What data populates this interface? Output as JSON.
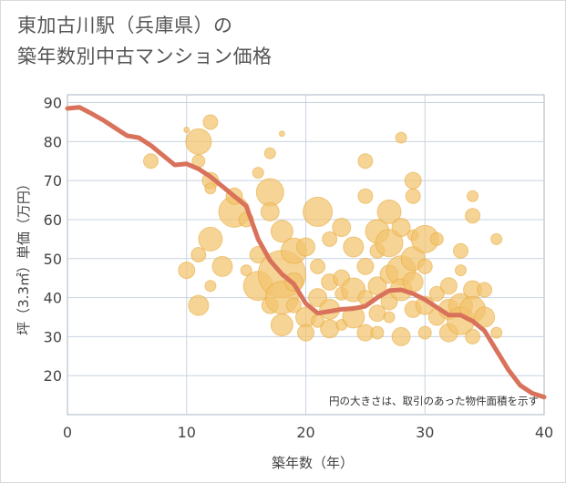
{
  "chart_data": {
    "type": "scatter",
    "title_line1": "東加古川駅（兵庫県）の",
    "title_line2": "築年数別中古マンション価格",
    "xlabel": "築年数（年）",
    "ylabel": "坪（3.3㎡）単価（万円）",
    "note": "円の大きさは、取引のあった物件面積を示す",
    "xlim": [
      0,
      40
    ],
    "ylim": [
      10,
      92
    ],
    "x_ticks": [
      0,
      10,
      20,
      30,
      40
    ],
    "y_ticks": [
      20,
      30,
      40,
      50,
      60,
      70,
      80,
      90
    ],
    "colors": {
      "bubble_fill": "#f3c46d",
      "bubble_stroke": "#e6a735",
      "trend_line": "#d9725a",
      "grid": "#c9d3e0",
      "plot_border": "#a9b5c4"
    },
    "trend_line": {
      "x": [
        0,
        1,
        2,
        3,
        4,
        5,
        6,
        7,
        8,
        9,
        10,
        11,
        12,
        13,
        14,
        15,
        16,
        17,
        18,
        19,
        20,
        21,
        22,
        23,
        24,
        25,
        26,
        27,
        28,
        29,
        30,
        31,
        32,
        33,
        34,
        35,
        36,
        37,
        38,
        39,
        40
      ],
      "y": [
        88.5,
        88.8,
        87.2,
        85.5,
        83.5,
        81.5,
        81,
        79,
        76.5,
        74,
        74.3,
        73,
        71,
        68.5,
        66,
        63.5,
        55,
        49.5,
        46,
        43.5,
        38.5,
        36,
        36.5,
        37,
        37.2,
        37.8,
        40,
        41.8,
        42,
        41,
        39.5,
        37.5,
        35.5,
        35.5,
        34,
        31.5,
        26.5,
        21.5,
        17.5,
        15.5,
        14.5
      ]
    },
    "bubbles": [
      {
        "x": 10,
        "y": 83,
        "r": 3
      },
      {
        "x": 11,
        "y": 80,
        "r": 14
      },
      {
        "x": 11,
        "y": 75,
        "r": 7
      },
      {
        "x": 12,
        "y": 85,
        "r": 8
      },
      {
        "x": 12,
        "y": 70,
        "r": 9
      },
      {
        "x": 12,
        "y": 68,
        "r": 6
      },
      {
        "x": 7,
        "y": 75,
        "r": 8
      },
      {
        "x": 10,
        "y": 47,
        "r": 9
      },
      {
        "x": 11,
        "y": 51,
        "r": 8
      },
      {
        "x": 11,
        "y": 38,
        "r": 11
      },
      {
        "x": 12,
        "y": 55,
        "r": 13
      },
      {
        "x": 12,
        "y": 43,
        "r": 6
      },
      {
        "x": 13,
        "y": 48,
        "r": 11
      },
      {
        "x": 14,
        "y": 62,
        "r": 17
      },
      {
        "x": 14,
        "y": 66,
        "r": 9
      },
      {
        "x": 15,
        "y": 60,
        "r": 8
      },
      {
        "x": 15,
        "y": 47,
        "r": 6
      },
      {
        "x": 16,
        "y": 43,
        "r": 16
      },
      {
        "x": 16,
        "y": 51,
        "r": 9
      },
      {
        "x": 16,
        "y": 72,
        "r": 6
      },
      {
        "x": 17,
        "y": 77,
        "r": 6
      },
      {
        "x": 17,
        "y": 67,
        "r": 15
      },
      {
        "x": 17,
        "y": 62,
        "r": 10
      },
      {
        "x": 17,
        "y": 38,
        "r": 9
      },
      {
        "x": 18,
        "y": 82,
        "r": 3
      },
      {
        "x": 18,
        "y": 57,
        "r": 12
      },
      {
        "x": 18,
        "y": 46,
        "r": 26
      },
      {
        "x": 18,
        "y": 40,
        "r": 18
      },
      {
        "x": 18,
        "y": 33,
        "r": 12
      },
      {
        "x": 19,
        "y": 52,
        "r": 14
      },
      {
        "x": 19,
        "y": 44,
        "r": 10
      },
      {
        "x": 19,
        "y": 38,
        "r": 8
      },
      {
        "x": 20,
        "y": 53,
        "r": 10
      },
      {
        "x": 20,
        "y": 35,
        "r": 11
      },
      {
        "x": 20,
        "y": 31,
        "r": 9
      },
      {
        "x": 21,
        "y": 62,
        "r": 16
      },
      {
        "x": 21,
        "y": 48,
        "r": 8
      },
      {
        "x": 21,
        "y": 40,
        "r": 10
      },
      {
        "x": 21,
        "y": 34,
        "r": 7
      },
      {
        "x": 22,
        "y": 55,
        "r": 8
      },
      {
        "x": 22,
        "y": 44,
        "r": 9
      },
      {
        "x": 22,
        "y": 37,
        "r": 11
      },
      {
        "x": 22,
        "y": 32,
        "r": 10
      },
      {
        "x": 23,
        "y": 58,
        "r": 10
      },
      {
        "x": 23,
        "y": 45,
        "r": 9
      },
      {
        "x": 23,
        "y": 41,
        "r": 7
      },
      {
        "x": 23,
        "y": 33,
        "r": 6
      },
      {
        "x": 24,
        "y": 53,
        "r": 11
      },
      {
        "x": 24,
        "y": 42,
        "r": 13
      },
      {
        "x": 24,
        "y": 35,
        "r": 12
      },
      {
        "x": 25,
        "y": 75,
        "r": 8
      },
      {
        "x": 25,
        "y": 66,
        "r": 8
      },
      {
        "x": 25,
        "y": 48,
        "r": 9
      },
      {
        "x": 25,
        "y": 40,
        "r": 8
      },
      {
        "x": 25,
        "y": 31,
        "r": 9
      },
      {
        "x": 26,
        "y": 57,
        "r": 13
      },
      {
        "x": 26,
        "y": 52,
        "r": 8
      },
      {
        "x": 26,
        "y": 43,
        "r": 10
      },
      {
        "x": 26,
        "y": 36,
        "r": 9
      },
      {
        "x": 26,
        "y": 31,
        "r": 7
      },
      {
        "x": 27,
        "y": 62,
        "r": 13
      },
      {
        "x": 27,
        "y": 54,
        "r": 15
      },
      {
        "x": 27,
        "y": 46,
        "r": 10
      },
      {
        "x": 27,
        "y": 39,
        "r": 9
      },
      {
        "x": 27,
        "y": 35,
        "r": 6
      },
      {
        "x": 28,
        "y": 81,
        "r": 6
      },
      {
        "x": 28,
        "y": 58,
        "r": 10
      },
      {
        "x": 28,
        "y": 47,
        "r": 16
      },
      {
        "x": 28,
        "y": 42,
        "r": 12
      },
      {
        "x": 28,
        "y": 30,
        "r": 10
      },
      {
        "x": 29,
        "y": 70,
        "r": 9
      },
      {
        "x": 29,
        "y": 66,
        "r": 8
      },
      {
        "x": 29,
        "y": 56,
        "r": 6
      },
      {
        "x": 29,
        "y": 50,
        "r": 13
      },
      {
        "x": 29,
        "y": 44,
        "r": 11
      },
      {
        "x": 29,
        "y": 37,
        "r": 9
      },
      {
        "x": 30,
        "y": 55,
        "r": 15
      },
      {
        "x": 30,
        "y": 48,
        "r": 8
      },
      {
        "x": 30,
        "y": 38,
        "r": 10
      },
      {
        "x": 30,
        "y": 31,
        "r": 7
      },
      {
        "x": 31,
        "y": 55,
        "r": 7
      },
      {
        "x": 31,
        "y": 41,
        "r": 8
      },
      {
        "x": 31,
        "y": 35,
        "r": 9
      },
      {
        "x": 32,
        "y": 43,
        "r": 9
      },
      {
        "x": 32,
        "y": 37,
        "r": 11
      },
      {
        "x": 32,
        "y": 31,
        "r": 10
      },
      {
        "x": 33,
        "y": 52,
        "r": 8
      },
      {
        "x": 33,
        "y": 47,
        "r": 6
      },
      {
        "x": 33,
        "y": 38,
        "r": 13
      },
      {
        "x": 33,
        "y": 34,
        "r": 15
      },
      {
        "x": 34,
        "y": 66,
        "r": 6
      },
      {
        "x": 34,
        "y": 61,
        "r": 8
      },
      {
        "x": 34,
        "y": 42,
        "r": 10
      },
      {
        "x": 34,
        "y": 37,
        "r": 14
      },
      {
        "x": 34,
        "y": 30,
        "r": 8
      },
      {
        "x": 35,
        "y": 42,
        "r": 8
      },
      {
        "x": 35,
        "y": 35,
        "r": 11
      },
      {
        "x": 36,
        "y": 55,
        "r": 6
      },
      {
        "x": 36,
        "y": 31,
        "r": 6
      }
    ]
  }
}
